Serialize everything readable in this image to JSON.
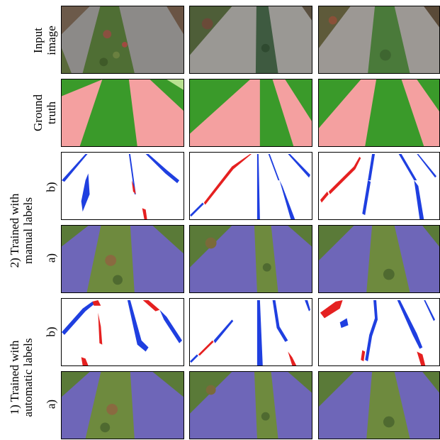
{
  "figure": {
    "row_labels": [
      {
        "lines": [
          "Input",
          "image"
        ]
      },
      {
        "lines": [
          "Ground",
          "truth"
        ]
      },
      {
        "lines": [
          "b)"
        ]
      },
      {
        "lines": [
          "a)"
        ]
      },
      {
        "lines": [
          "b)"
        ]
      },
      {
        "lines": [
          "a)"
        ]
      }
    ],
    "group_labels": [
      {
        "lines": [
          "2) Trained with",
          "manual labels"
        ]
      },
      {
        "lines": [
          "1) Trained with",
          "automatic labels"
        ]
      }
    ]
  },
  "colors": {
    "crop": "#3a9a2a",
    "background": "#f4a0a0",
    "light_crop": "#b8e090",
    "false_positive": "#e52020",
    "false_negative": "#1f3fe0",
    "soil": "#9a9690",
    "plant": "#5a7a38",
    "overlay": "#6e66b8"
  }
}
